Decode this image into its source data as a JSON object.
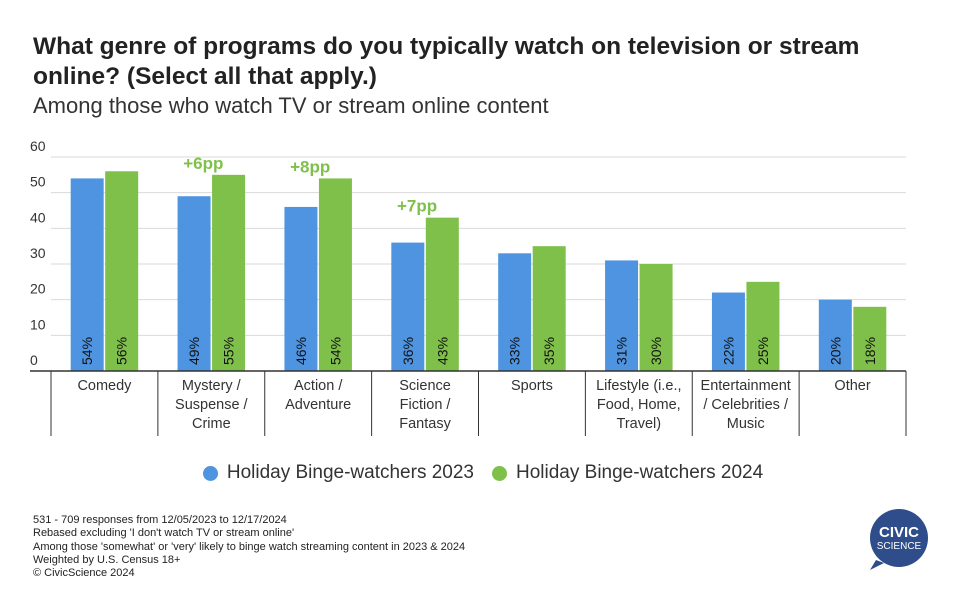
{
  "header": {
    "title": "What genre of programs do you typically watch on television or stream online? (Select all that apply.)",
    "subtitle": "Among those who watch TV or stream online content"
  },
  "colors": {
    "series_2023": "#4f94e0",
    "series_2024": "#7fc04b",
    "annotation": "#7fc04b",
    "logo": "#2f4d8a"
  },
  "chart_data": {
    "type": "bar",
    "ylim": [
      0,
      60
    ],
    "yticks": [
      0,
      10,
      20,
      30,
      40,
      50,
      60
    ],
    "grid": true,
    "legend_position": "bottom",
    "categories": [
      [
        "Comedy"
      ],
      [
        "Mystery /",
        "Suspense /",
        "Crime"
      ],
      [
        "Action /",
        "Adventure"
      ],
      [
        "Science",
        "Fiction /",
        "Fantasy"
      ],
      [
        "Sports"
      ],
      [
        "Lifestyle (i.e.,",
        "Food, Home,",
        "Travel)"
      ],
      [
        "Entertainment",
        "/ Celebrities /",
        "Music"
      ],
      [
        "Other"
      ]
    ],
    "series": [
      {
        "name": "Holiday Binge-watchers 2023",
        "values": [
          54,
          49,
          46,
          36,
          33,
          31,
          22,
          20
        ]
      },
      {
        "name": "Holiday Binge-watchers 2024",
        "values": [
          56,
          55,
          54,
          43,
          35,
          30,
          25,
          18
        ]
      }
    ],
    "annotations": [
      {
        "category_index": 1,
        "text": "+6pp"
      },
      {
        "category_index": 2,
        "text": "+8pp"
      },
      {
        "category_index": 3,
        "text": "+7pp"
      }
    ]
  },
  "footer": {
    "notes": [
      "531 - 709 responses from 12/05/2023 to 12/17/2024",
      "Rebased excluding 'I don't watch TV or stream online'",
      "Among those 'somewhat' or 'very' likely to binge watch streaming content in 2023 & 2024",
      "Weighted by U.S. Census 18+",
      "© CivicScience 2024"
    ],
    "logo_line1": "CIVIC",
    "logo_line2": "SCIENCE"
  }
}
